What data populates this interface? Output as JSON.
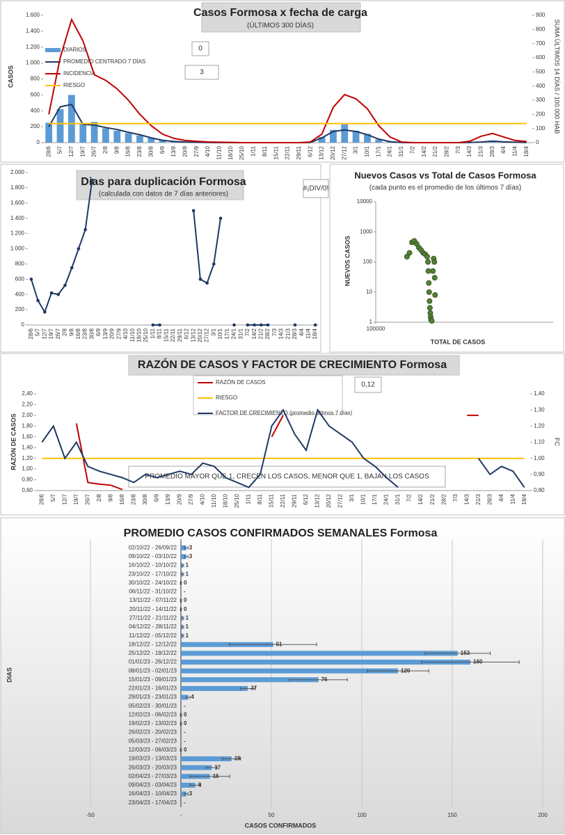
{
  "chart_data": [
    {
      "type": "combo",
      "title": "Casos Formosa x fecha de carga",
      "subtitle": "(ÚLTIMOS 300 DÍAS)",
      "ylabel": "CASOS",
      "y2label": "SUMA ÚLTIMOS 14 DÍAS / 100.000 HAB",
      "categories": [
        "28/6",
        "5/7",
        "12/7",
        "19/7",
        "26/7",
        "2/8",
        "9/8",
        "16/8",
        "23/8",
        "30/8",
        "6/9",
        "13/9",
        "20/9",
        "27/9",
        "4/10",
        "11/10",
        "18/10",
        "25/10",
        "1/11",
        "8/11",
        "15/11",
        "22/11",
        "29/11",
        "6/12",
        "13/12",
        "20/12",
        "27/12",
        "3/1",
        "10/1",
        "17/1",
        "24/1",
        "31/1",
        "7/2",
        "14/2",
        "21/2",
        "28/2",
        "7/3",
        "14/3",
        "21/3",
        "28/3",
        "4/4",
        "11/4",
        "18/4"
      ],
      "series": [
        {
          "name": "DIARIOS",
          "type": "bar",
          "color": "#5b9bd5",
          "values": [
            250,
            420,
            600,
            240,
            260,
            180,
            150,
            120,
            90,
            60,
            30,
            15,
            8,
            4,
            2,
            1,
            1,
            0,
            0,
            0,
            0,
            0,
            0,
            2,
            70,
            160,
            230,
            150,
            110,
            40,
            12,
            2,
            0,
            0,
            0,
            0,
            0,
            2,
            10,
            25,
            12,
            6,
            3
          ]
        },
        {
          "name": "PROMEDIO CENTRADO 7 DÍAS",
          "color": "#1f3864",
          "values": [
            200,
            450,
            480,
            230,
            220,
            190,
            165,
            130,
            100,
            60,
            30,
            15,
            8,
            4,
            2,
            1,
            1,
            0,
            0,
            0,
            0,
            0,
            0,
            2,
            60,
            140,
            160,
            140,
            100,
            45,
            12,
            2,
            0,
            0,
            0,
            0,
            0,
            2,
            8,
            20,
            10,
            5,
            3
          ]
        },
        {
          "name": "INCIDENCIA",
          "color": "#c00000",
          "axis": "y2",
          "values": [
            200,
            600,
            870,
            720,
            480,
            440,
            380,
            300,
            200,
            120,
            60,
            30,
            15,
            10,
            5,
            3,
            2,
            0,
            0,
            0,
            0,
            0,
            0,
            5,
            60,
            250,
            340,
            310,
            240,
            120,
            40,
            5,
            0,
            0,
            0,
            0,
            0,
            10,
            45,
            65,
            40,
            15,
            8
          ]
        },
        {
          "name": "RIESGO",
          "color": "#ffc000",
          "axis": "y2",
          "values": [
            135,
            135,
            135,
            135,
            135,
            135,
            135,
            135,
            135,
            135,
            135,
            135,
            135,
            135,
            135,
            135,
            135,
            135,
            135,
            135,
            135,
            135,
            135,
            135,
            135,
            135,
            135,
            135,
            135,
            135,
            135,
            135,
            135,
            135,
            135,
            135,
            135,
            135,
            135,
            135,
            135,
            135,
            135
          ]
        }
      ],
      "ylim": [
        0,
        1600
      ],
      "yticks": [
        0,
        200,
        400,
        600,
        800,
        {
          "value": 1000,
          "label": "1.000"
        },
        {
          "value": 1200,
          "label": "1.200"
        },
        {
          "value": 1400,
          "label": "1.400"
        },
        {
          "value": 1600,
          "label": "1.600"
        }
      ],
      "y2lim": [
        0,
        900
      ],
      "y2ticks": [
        0,
        100,
        200,
        300,
        400,
        500,
        600,
        700,
        800,
        900
      ],
      "grid": false,
      "annotations": [
        "0",
        "3"
      ]
    },
    {
      "type": "line",
      "title": "Dias para duplicación Formosa",
      "subtitle": "(calculada con datos de 7 días anteriores)",
      "categories": [
        "28/6",
        "5/7",
        "12/7",
        "19/7",
        "26/7",
        "2/8",
        "9/8",
        "16/8",
        "23/8",
        "30/8",
        "6/9",
        "13/9",
        "20/9",
        "27/9",
        "4/10",
        "11/10",
        "18/10",
        "25/10",
        "1/11",
        "8/11",
        "15/11",
        "22/11",
        "29/11",
        "6/12",
        "13/12",
        "20/12",
        "27/12",
        "3/1",
        "10/1",
        "17/1",
        "24/1",
        "31/1",
        "7/2",
        "14/2",
        "21/2",
        "28/2",
        "7/3",
        "14/3",
        "21/3",
        "28/3",
        "4/4",
        "11/4",
        "18/4"
      ],
      "values": [
        600,
        320,
        170,
        420,
        400,
        520,
        750,
        1000,
        1250,
        1900,
        null,
        null,
        null,
        null,
        null,
        null,
        null,
        null,
        0,
        0,
        null,
        null,
        null,
        null,
        1500,
        600,
        550,
        800,
        1400,
        null,
        0,
        null,
        0,
        0,
        0,
        0,
        null,
        null,
        null,
        0,
        null,
        null,
        0
      ],
      "color": "#1f3864",
      "markers": true,
      "ylim": [
        0,
        2000
      ],
      "yticks": [
        0,
        200,
        400,
        600,
        800,
        {
          "value": 1000,
          "label": "1.000"
        },
        {
          "value": 1200,
          "label": "1.200"
        },
        {
          "value": 1400,
          "label": "1.400"
        },
        {
          "value": 1600,
          "label": "1.600"
        },
        {
          "value": 1800,
          "label": "1.800"
        },
        {
          "value": 2000,
          "label": "2.000"
        }
      ],
      "grid": false,
      "annotations": [
        "#¡DIV/0!"
      ]
    },
    {
      "type": "scatter",
      "title": "Nuevos Casos vs Total de Casos Formosa",
      "subtitle": "(cada punto es el promedio de los últimos 7 días)",
      "ylabel": "NUEVOS CASOS",
      "xlabel": "TOTAL DE CASOS",
      "x": [
        150000,
        155000,
        160000,
        165000,
        170000,
        175000,
        180000,
        185000,
        190000,
        195000,
        197000,
        198000,
        199000,
        200000,
        201000,
        202000,
        203000,
        204000,
        205000,
        207000,
        210000,
        212000,
        214000,
        215000,
        216000
      ],
      "values": [
        150,
        200,
        450,
        500,
        400,
        300,
        250,
        200,
        180,
        150,
        100,
        50,
        20,
        10,
        5,
        3,
        2,
        1.5,
        1.2,
        1.1,
        50,
        130,
        100,
        30,
        8
      ],
      "color": "#548235",
      "xlog": true,
      "ylog": true,
      "xlim": [
        100000,
        1000000
      ],
      "xticks": [
        100000
      ],
      "ylim": [
        1,
        10000
      ],
      "yticks": [
        1,
        10,
        100,
        1000,
        10000
      ]
    },
    {
      "type": "line",
      "title": "RAZÓN DE CASOS Y FACTOR DE CRECIMIENTO Formosa",
      "ylabel": "RAZÓN DE CASOS",
      "y2label": "FC",
      "categories": [
        "28/6",
        "5/7",
        "12/7",
        "19/7",
        "26/7",
        "2/8",
        "9/8",
        "16/8",
        "23/8",
        "30/8",
        "6/9",
        "13/9",
        "20/9",
        "27/9",
        "4/10",
        "11/10",
        "18/10",
        "25/10",
        "1/11",
        "8/11",
        "15/11",
        "22/11",
        "29/11",
        "6/12",
        "13/12",
        "20/12",
        "27/12",
        "3/1",
        "10/1",
        "17/1",
        "24/1",
        "31/1",
        "7/2",
        "14/2",
        "21/2",
        "28/2",
        "7/3",
        "14/3",
        "21/3",
        "28/3",
        "4/4",
        "11/4",
        "18/4"
      ],
      "series": [
        {
          "name": "RAZÓN DE CASOS",
          "color": "#c00000",
          "values": [
            null,
            null,
            null,
            1.85,
            0.75,
            0.72,
            0.7,
            0.62,
            null,
            null,
            null,
            null,
            null,
            null,
            null,
            null,
            null,
            null,
            null,
            null,
            1.6,
            2.0,
            null,
            null,
            null,
            null,
            null,
            null,
            null,
            null,
            null,
            null,
            null,
            null,
            null,
            null,
            null,
            2.0,
            2.0,
            null,
            null,
            null,
            null
          ]
        },
        {
          "name": "RIESGO",
          "color": "#ffc000",
          "values": [
            1.2,
            1.2,
            1.2,
            1.2,
            1.2,
            1.2,
            1.2,
            1.2,
            1.2,
            1.2,
            1.2,
            1.2,
            1.2,
            1.2,
            1.2,
            1.2,
            1.2,
            1.2,
            1.2,
            1.2,
            1.2,
            1.2,
            1.2,
            1.2,
            1.2,
            1.2,
            1.2,
            1.2,
            1.2,
            1.2,
            1.2,
            1.2,
            1.2,
            1.2,
            1.2,
            1.2,
            1.2,
            1.2,
            1.2,
            1.2,
            1.2,
            1.2,
            1.2
          ]
        },
        {
          "name": "FACTOR DE CRECIMIENTO (promedio últimos 7 días)",
          "color": "#1f3864",
          "axis": "y2",
          "values": [
            1.1,
            1.2,
            1.0,
            1.1,
            0.95,
            0.92,
            0.9,
            0.88,
            0.85,
            0.9,
            0.88,
            0.9,
            0.92,
            0.9,
            0.97,
            0.95,
            0.88,
            0.85,
            0.82,
            0.9,
            1.2,
            1.3,
            1.15,
            1.05,
            1.3,
            1.2,
            1.15,
            1.1,
            1.0,
            0.95,
            0.88,
            0.82,
            null,
            0.92,
            null,
            null,
            null,
            null,
            1.0,
            0.9,
            0.95,
            0.92,
            0.82
          ]
        }
      ],
      "ylim": [
        0.6,
        2.4
      ],
      "yticks": [
        {
          "value": 0.6,
          "label": "0,60"
        },
        {
          "value": 0.8,
          "label": "0,80"
        },
        {
          "value": 1.0,
          "label": "1,00"
        },
        {
          "value": 1.2,
          "label": "1,20"
        },
        {
          "value": 1.4,
          "label": "1,40"
        },
        {
          "value": 1.6,
          "label": "1,60"
        },
        {
          "value": 1.8,
          "label": "1,80"
        },
        {
          "value": 2.0,
          "label": "2,00"
        },
        {
          "value": 2.2,
          "label": "2,20"
        },
        {
          "value": 2.4,
          "label": "2,40"
        }
      ],
      "y2lim": [
        0.8,
        1.4
      ],
      "y2ticks": [
        {
          "value": 0.8,
          "label": "0,80"
        },
        {
          "value": 0.9,
          "label": "0,90"
        },
        {
          "value": 1.0,
          "label": "1,00"
        },
        {
          "value": 1.1,
          "label": "1,10"
        },
        {
          "value": 1.2,
          "label": "1,20"
        },
        {
          "value": 1.3,
          "label": "1,30"
        },
        {
          "value": 1.4,
          "label": "1,40"
        }
      ],
      "grid": false,
      "annotations": [
        "0,12",
        "PROMEDIO MAYOR QUE 1, CRECEN LOS CASOS, MENOR QUE 1, BAJAN LOS CASOS"
      ]
    },
    {
      "type": "bar",
      "orientation": "horizontal",
      "title": "PROMEDIO CASOS CONFIRMADOS SEMANALES Formosa",
      "ylabel": "DIAS",
      "xlabel": "CASOS CONFIRMADOS",
      "categories": [
        "02/10/22 - 26/09/22",
        "09/10/22 - 03/10/22",
        "16/10/22 - 10/10/22",
        "23/10/22 - 17/10/22",
        "30/10/22 - 24/10/22",
        "06/11/22 - 31/10/22",
        "13/11/22 - 07/11/22",
        "20/11/22 - 14/11/22",
        "27/11/22 - 21/11/22",
        "04/12/22 - 28/11/22",
        "11/12/22 - 05/12/22",
        "18/12/22 - 12/12/22",
        "25/12/22 - 19/12/22",
        "01/01/23 - 26/12/22",
        "08/01/23 - 02/01/23",
        "15/01/23 - 09/01/23",
        "22/01/23 - 16/01/23",
        "29/01/23 - 23/01/23",
        "05/02/23 - 30/01/23",
        "12/02/23 - 06/02/23",
        "19/02/23 - 13/02/23",
        "26/02/23 - 20/02/23",
        "05/03/23 - 27/02/23",
        "12/03/23 - 06/03/23",
        "19/03/23 - 13/03/23",
        "26/03/23 - 20/03/23",
        "02/04/23 - 27/03/23",
        "09/04/23 - 03/04/23",
        "16/04/23 - 10/04/23",
        "23/04/23 - 17/04/23"
      ],
      "values": [
        3,
        3,
        1,
        1,
        0,
        0,
        0,
        0,
        1,
        1,
        1,
        51,
        153,
        160,
        120,
        76,
        37,
        4,
        0,
        0,
        0,
        0,
        0,
        0,
        28,
        17,
        16,
        8,
        3,
        0
      ],
      "value_labels": [
        "3",
        "3",
        "1",
        "1",
        "0",
        "-",
        "0",
        "0",
        "1",
        "1",
        "1",
        "51",
        "153",
        "160",
        "120",
        "76",
        "37",
        "4",
        "-",
        "0",
        "0",
        "-",
        "-",
        "0",
        "28",
        "17",
        "16",
        "8",
        "3",
        "-"
      ],
      "errors": [
        1,
        1,
        0.5,
        0.5,
        0.3,
        0,
        0.3,
        0.3,
        0.5,
        0.5,
        0.5,
        24,
        18,
        27,
        17,
        16,
        4,
        1,
        0,
        0.3,
        0.3,
        0,
        0,
        0.3,
        5,
        3,
        11,
        3,
        1,
        0
      ],
      "color": "#5b9bd5",
      "xlim": [
        -50,
        200
      ],
      "xticks": [
        -50,
        {
          "value": 0,
          "label": "-"
        },
        50,
        100,
        150,
        200
      ],
      "grid": true
    }
  ]
}
